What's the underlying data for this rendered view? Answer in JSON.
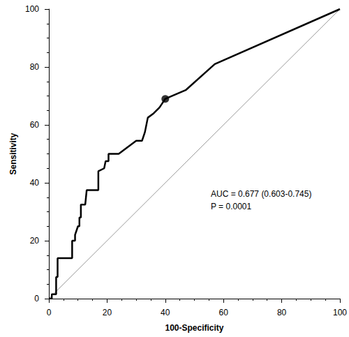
{
  "chart_data": {
    "type": "line",
    "x_label": "100-Specificity",
    "y_label": "Sensitivity",
    "xlim": [
      0,
      100
    ],
    "xticks": [
      0,
      20,
      40,
      60,
      80,
      100
    ],
    "ylim": [
      0,
      100
    ],
    "yticks": [
      0,
      20,
      40,
      60,
      80,
      100
    ],
    "grid": false,
    "annotations": [
      "AUC = 0.677 (0.603-0.745)",
      "P = 0.0001"
    ],
    "series": [
      {
        "type": "line",
        "color": "#999999",
        "line_style": "solid",
        "x": [
          0,
          100
        ],
        "values": [
          0,
          100
        ]
      },
      {
        "type": "line",
        "color": "#000000",
        "line_style": "solid",
        "x": [
          0,
          1,
          1,
          2.5,
          2.5,
          3,
          3,
          8,
          8,
          9,
          9,
          10,
          10.5,
          10.5,
          11,
          11,
          12.5,
          13,
          17,
          17,
          19,
          19.5,
          20.5,
          20.5,
          24,
          30,
          32,
          33,
          34,
          36,
          38,
          40,
          47,
          57,
          100
        ],
        "values": [
          0,
          0,
          1.5,
          1.5,
          7.5,
          7.5,
          14,
          14,
          20,
          20,
          22,
          25,
          25,
          28,
          28,
          32.5,
          32.5,
          37.5,
          37.5,
          44,
          45,
          47.5,
          47.5,
          50,
          50,
          54.5,
          54.5,
          57.5,
          62.5,
          64,
          66,
          69,
          72,
          81,
          100
        ]
      },
      {
        "type": "scatter",
        "color": "#000000",
        "marker": "circle",
        "x": [
          40
        ],
        "values": [
          69
        ]
      }
    ]
  }
}
